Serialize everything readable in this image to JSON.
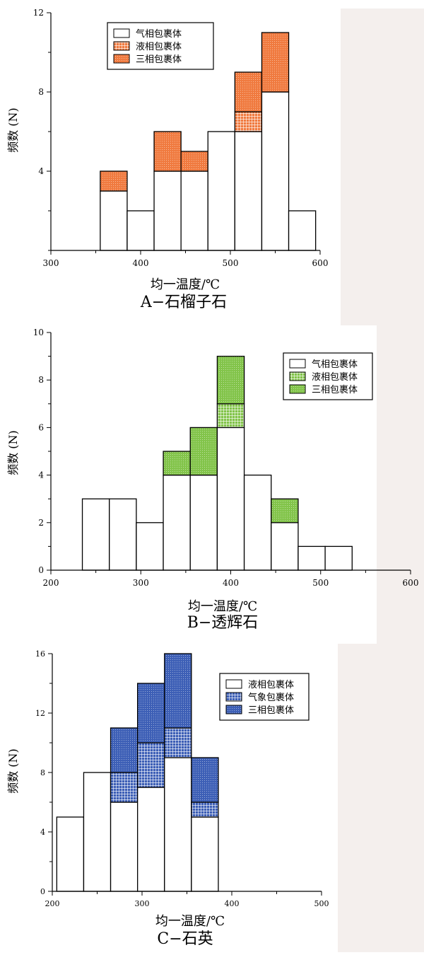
{
  "colors": {
    "garnet": "#f07a3f",
    "diopside": "#82c44a",
    "quartz": "#3d5fb6",
    "background_strip": "#f4efed"
  },
  "chart_data": [
    {
      "type": "bar",
      "stacked": true,
      "caption": "A−石榴子石",
      "xlabel": "均一温度/℃",
      "ylabel": "频数 (N)",
      "xlim": [
        300,
        600
      ],
      "ylim": [
        0,
        12
      ],
      "x_ticks": [
        "300",
        "400",
        "500",
        "600"
      ],
      "y_ticks": [
        "4",
        "8",
        "12"
      ],
      "bin_width": 30,
      "bins": [
        370,
        400,
        430,
        460,
        490,
        520,
        550,
        580
      ],
      "series": [
        {
          "name": "气相包裹体",
          "pattern": "white",
          "values": [
            3,
            2,
            4,
            4,
            6,
            6,
            8,
            2
          ]
        },
        {
          "name": "液相包裹体",
          "pattern": "grid",
          "values": [
            0,
            0,
            0,
            0,
            0,
            1,
            0,
            0
          ]
        },
        {
          "name": "三相包裹体",
          "pattern": "dots",
          "values": [
            1,
            0,
            2,
            1,
            0,
            2,
            3,
            0
          ]
        }
      ],
      "legend_position": "top-left"
    },
    {
      "type": "bar",
      "stacked": true,
      "caption": "B−透辉石",
      "xlabel": "均一温度/℃",
      "ylabel": "频数 (N)",
      "xlim": [
        200,
        600
      ],
      "ylim": [
        0,
        10
      ],
      "x_ticks": [
        "200",
        "300",
        "400",
        "500",
        "600"
      ],
      "y_ticks": [
        "0",
        "2",
        "4",
        "6",
        "8",
        "10"
      ],
      "bin_width": 30,
      "bins": [
        250,
        280,
        310,
        340,
        370,
        400,
        430,
        460,
        490,
        520
      ],
      "series": [
        {
          "name": "气相包裹体",
          "pattern": "white",
          "values": [
            3,
            3,
            2,
            4,
            4,
            6,
            4,
            2,
            1,
            1
          ]
        },
        {
          "name": "液相包裹体",
          "pattern": "grid",
          "values": [
            0,
            0,
            0,
            0,
            0,
            1,
            0,
            0,
            0,
            0
          ]
        },
        {
          "name": "三相包裹体",
          "pattern": "dots",
          "values": [
            0,
            0,
            0,
            1,
            2,
            2,
            0,
            1,
            0,
            0
          ]
        }
      ],
      "legend_position": "top-right"
    },
    {
      "type": "bar",
      "stacked": true,
      "caption": "C−石英",
      "xlabel": "均一温度/℃",
      "ylabel": "频数 (N)",
      "xlim": [
        200,
        500
      ],
      "ylim": [
        0,
        16
      ],
      "x_ticks": [
        "200",
        "300",
        "400",
        "500"
      ],
      "y_ticks": [
        "0",
        "4",
        "8",
        "12",
        "16"
      ],
      "bin_width": 30,
      "bins": [
        220,
        250,
        280,
        310,
        340,
        370
      ],
      "series": [
        {
          "name": "液相包裹体",
          "pattern": "white",
          "values": [
            5,
            8,
            6,
            7,
            9,
            5
          ]
        },
        {
          "name": "气象包裹体",
          "pattern": "grid",
          "values": [
            0,
            0,
            2,
            3,
            2,
            1
          ]
        },
        {
          "name": "三相包裹体",
          "pattern": "dots",
          "values": [
            0,
            0,
            3,
            4,
            5,
            3
          ]
        }
      ],
      "legend_position": "top-right"
    }
  ]
}
